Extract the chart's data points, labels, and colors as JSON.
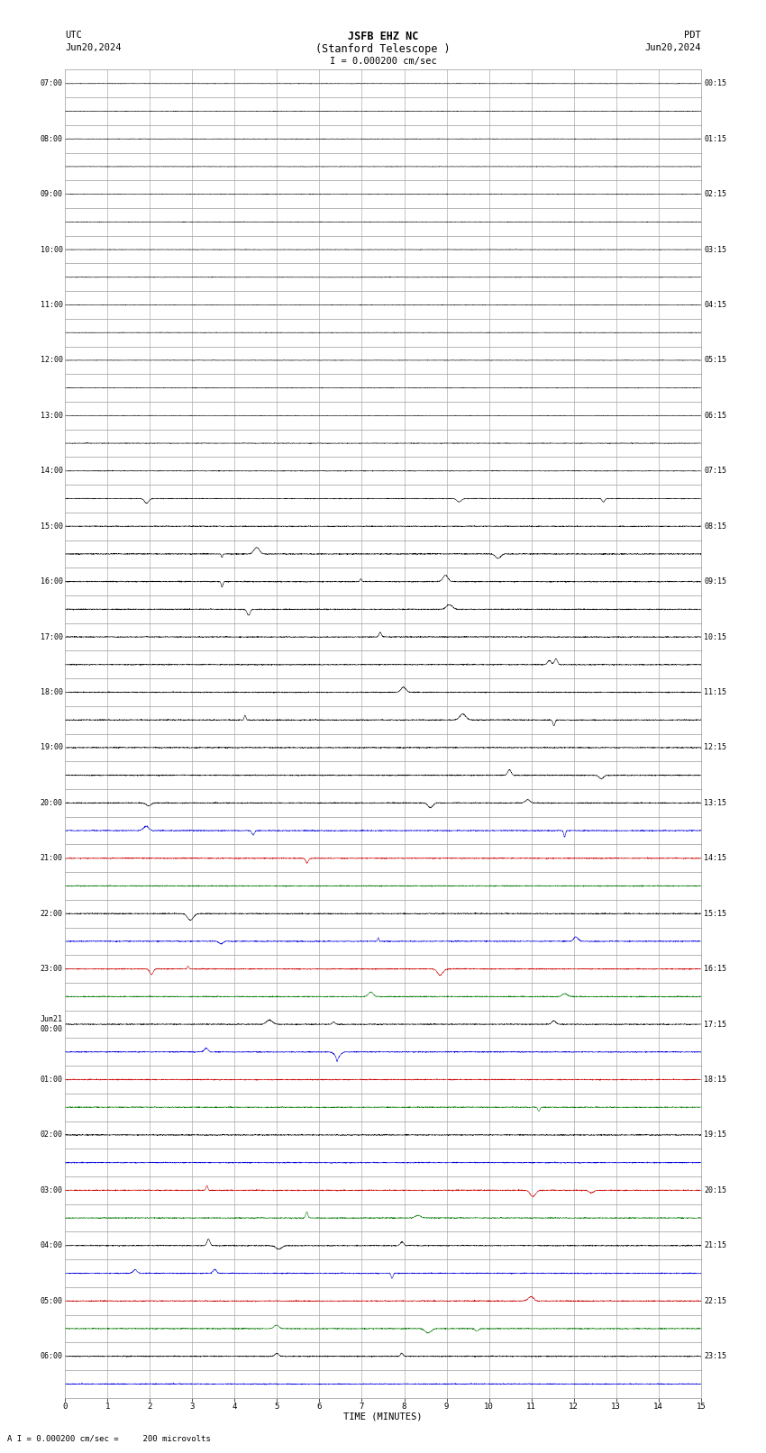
{
  "title_line1": "JSFB EHZ NC",
  "title_line2": "(Stanford Telescope )",
  "scale_label": "I = 0.000200 cm/sec",
  "utc_label": "UTC",
  "pdt_label": "PDT",
  "date_left": "Jun20,2024",
  "date_right": "Jun20,2024",
  "footer_label": "A I = 0.000200 cm/sec =     200 microvolts",
  "xlabel": "TIME (MINUTES)",
  "bg_color": "#ffffff",
  "grid_color": "#999999",
  "trace_colors": [
    "#000000",
    "#0000dd",
    "#cc0000",
    "#007700"
  ],
  "fig_width": 8.5,
  "fig_height": 16.13,
  "n_rows": 48,
  "minutes_per_row": 15,
  "utc_labels": [
    "07:00",
    "",
    "08:00",
    "",
    "09:00",
    "",
    "10:00",
    "",
    "11:00",
    "",
    "12:00",
    "",
    "13:00",
    "",
    "14:00",
    "",
    "15:00",
    "",
    "16:00",
    "",
    "17:00",
    "",
    "18:00",
    "",
    "19:00",
    "",
    "20:00",
    "",
    "21:00",
    "",
    "22:00",
    "",
    "23:00",
    "",
    "Jun21\n00:00",
    "",
    "01:00",
    "",
    "02:00",
    "",
    "03:00",
    "",
    "04:00",
    "",
    "05:00",
    "",
    "06:00",
    ""
  ],
  "pdt_labels": [
    "00:15",
    "",
    "01:15",
    "",
    "02:15",
    "",
    "03:15",
    "",
    "04:15",
    "",
    "05:15",
    "",
    "06:15",
    "",
    "07:15",
    "",
    "08:15",
    "",
    "09:15",
    "",
    "10:15",
    "",
    "11:15",
    "",
    "12:15",
    "",
    "13:15",
    "",
    "14:15",
    "",
    "15:15",
    "",
    "16:15",
    "",
    "17:15",
    "",
    "18:15",
    "",
    "19:15",
    "",
    "20:15",
    "",
    "21:15",
    "",
    "22:15",
    "",
    "23:15",
    ""
  ],
  "bottom_tick_labels": [
    "0",
    "1",
    "2",
    "3",
    "4",
    "5",
    "6",
    "7",
    "8",
    "9",
    "10",
    "11",
    "12",
    "13",
    "14",
    "15"
  ],
  "color_pattern": [
    0,
    0,
    0,
    0,
    0,
    0,
    0,
    0,
    0,
    0,
    0,
    0,
    0,
    0,
    0,
    0,
    0,
    0,
    0,
    0,
    0,
    0,
    0,
    0,
    0,
    0,
    0,
    1,
    2,
    3,
    0,
    1,
    2,
    3,
    0,
    1,
    2,
    3,
    0,
    1,
    2,
    3,
    0,
    1,
    2,
    3,
    0,
    1
  ],
  "amp_pattern": [
    0.03,
    0.03,
    0.03,
    0.03,
    0.03,
    0.03,
    0.03,
    0.03,
    0.03,
    0.03,
    0.03,
    0.03,
    0.03,
    0.04,
    0.04,
    0.05,
    0.06,
    0.07,
    0.07,
    0.07,
    0.07,
    0.07,
    0.07,
    0.07,
    0.07,
    0.07,
    0.07,
    0.07,
    0.07,
    0.07,
    0.07,
    0.07,
    0.07,
    0.07,
    0.07,
    0.07,
    0.07,
    0.07,
    0.07,
    0.07,
    0.07,
    0.07,
    0.07,
    0.07,
    0.07,
    0.07,
    0.07,
    0.07
  ]
}
